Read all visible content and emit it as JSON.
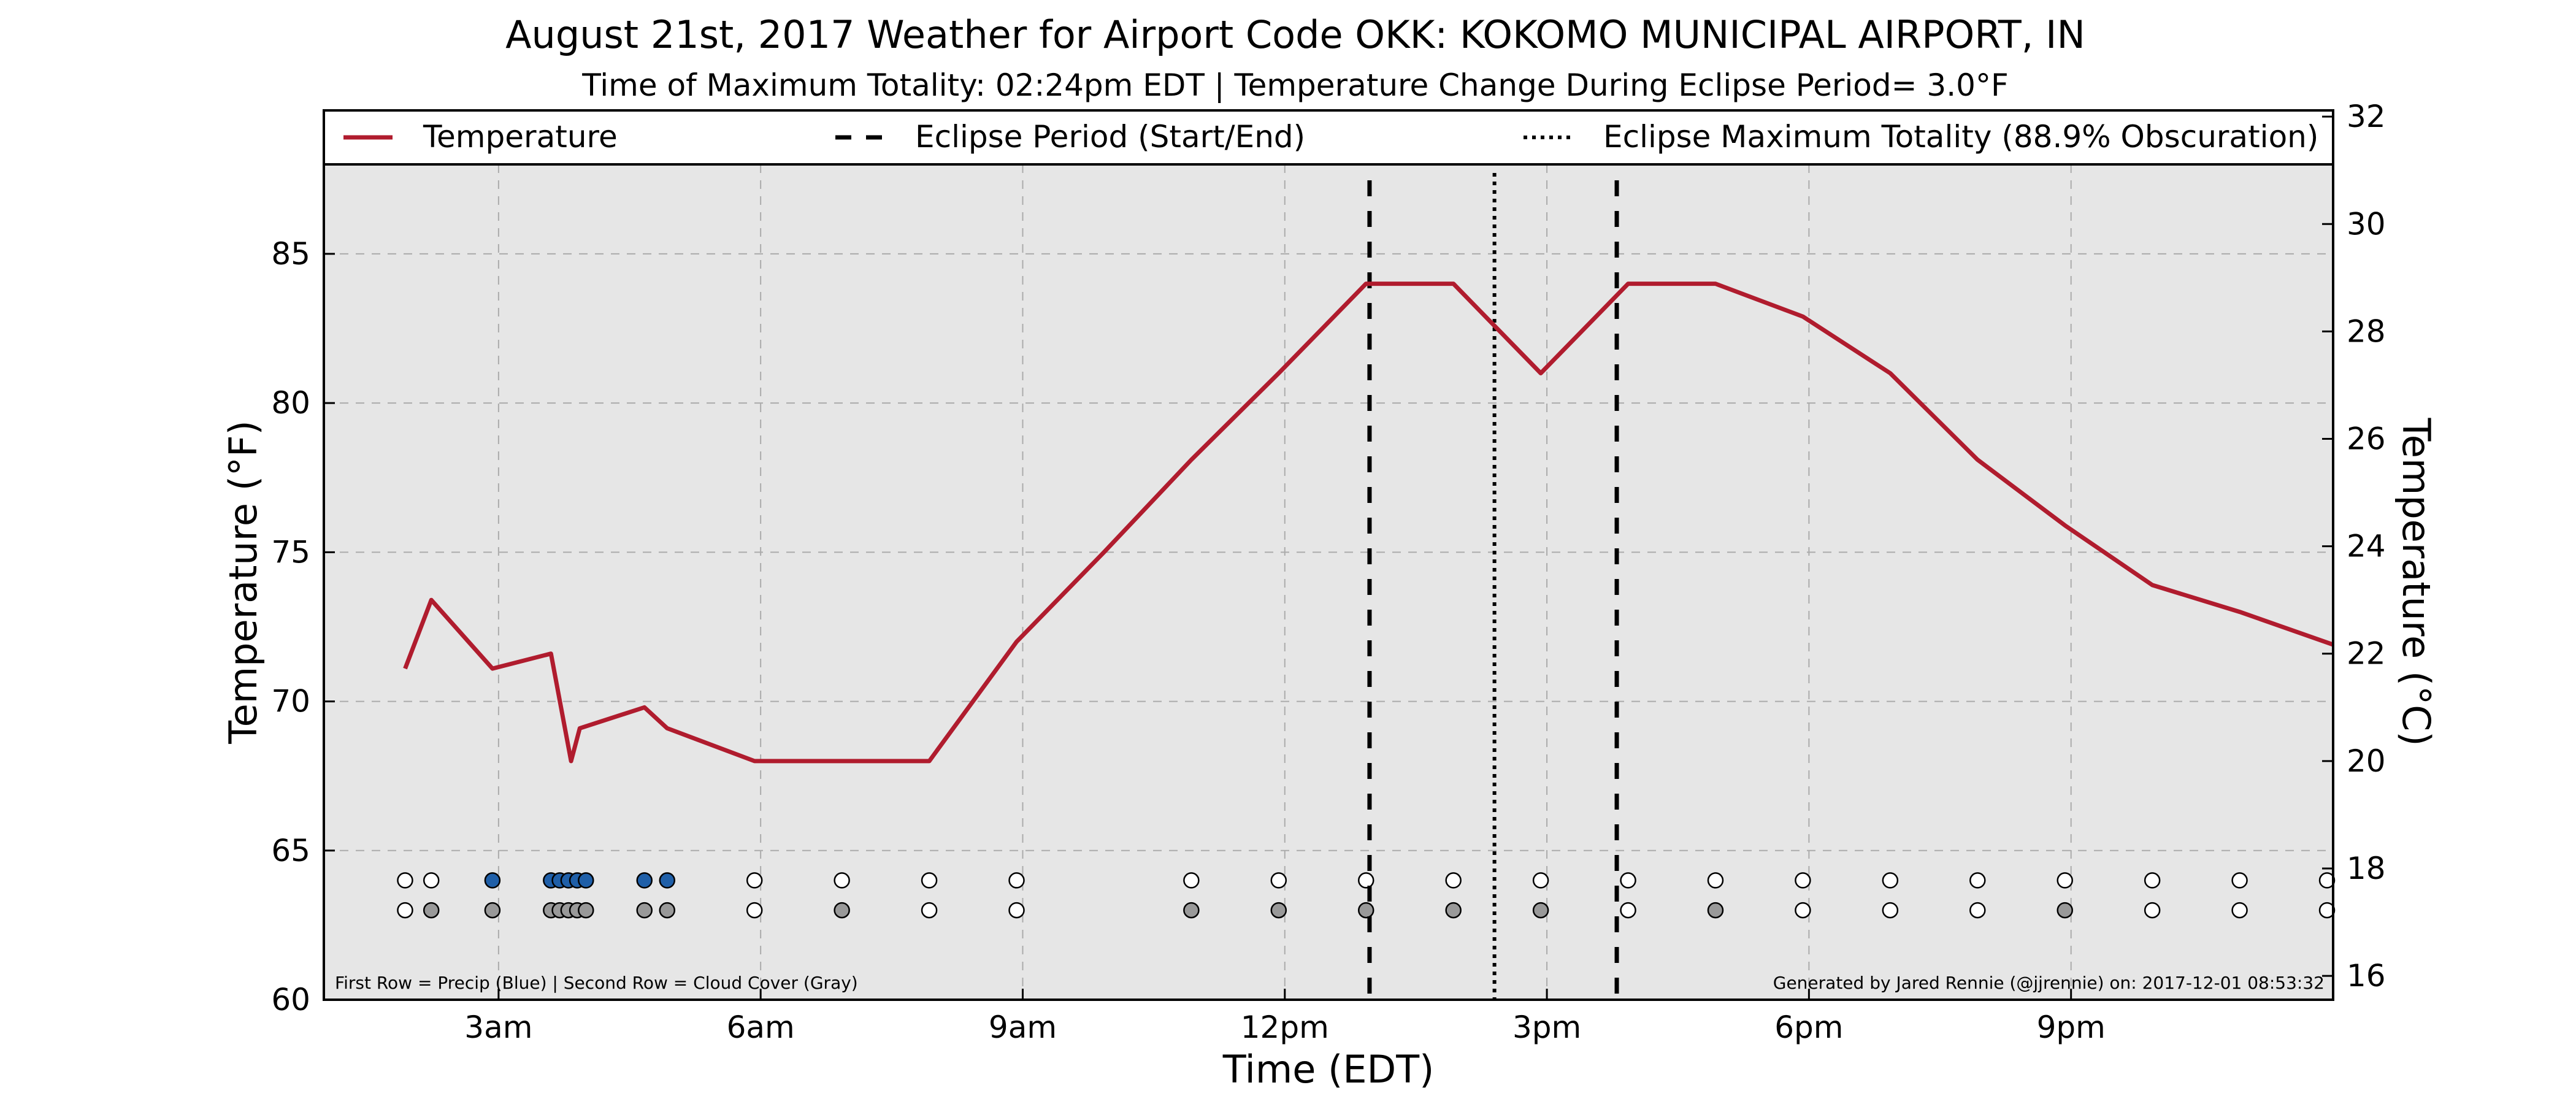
{
  "chart_data": {
    "type": "line",
    "title": "August 21st, 2017 Weather for Airport Code OKK: KOKOMO MUNICIPAL AIRPORT, IN",
    "subtitle": "Time of Maximum Totality: 02:24pm EDT | Temperature Change During Eclipse Period= 3.0°F",
    "xlabel": "Time (EDT)",
    "ylabel": "Temperature (°F)",
    "ylabel_right": "Temperature (°C)",
    "x_unit": "hours since midnight EDT",
    "xlim": [
      1.0,
      24.0
    ],
    "ylim": [
      60,
      88
    ],
    "ylim_right": [
      15.5555556,
      31.1111111
    ],
    "x_ticks": [
      {
        "value": 3,
        "label": "3am"
      },
      {
        "value": 6,
        "label": "6am"
      },
      {
        "value": 9,
        "label": "9am"
      },
      {
        "value": 12,
        "label": "12pm"
      },
      {
        "value": 15,
        "label": "3pm"
      },
      {
        "value": 18,
        "label": "6pm"
      },
      {
        "value": 21,
        "label": "9pm"
      }
    ],
    "y_ticks": [
      60,
      65,
      70,
      75,
      80,
      85
    ],
    "y_ticks_right": [
      16,
      18,
      20,
      22,
      24,
      26,
      28,
      30,
      32
    ],
    "grid": true,
    "legend_placement": "top",
    "legend": [
      {
        "label": "Temperature",
        "style": "solid",
        "color": "#b01c2e"
      },
      {
        "label": "Eclipse Period (Start/End)",
        "style": "dashed",
        "color": "#000000"
      },
      {
        "label": "Eclipse Maximum Totality (88.9% Obscuration)",
        "style": "dotted",
        "color": "#000000"
      }
    ],
    "series": [
      {
        "name": "Temperature",
        "color": "#b01c2e",
        "x": [
          1.93,
          2.23,
          2.93,
          3.6,
          3.83,
          3.93,
          4.67,
          4.93,
          5.93,
          7.93,
          8.93,
          9.93,
          10.93,
          11.93,
          12.93,
          13.93,
          14.93,
          15.93,
          16.93,
          17.93,
          18.93,
          19.93,
          20.93,
          21.93,
          22.93,
          24.0
        ],
        "y": [
          71.1,
          73.4,
          71.1,
          71.6,
          68.0,
          69.1,
          69.8,
          69.1,
          68.0,
          68.0,
          72.0,
          75.0,
          78.1,
          81.0,
          84.0,
          84.0,
          81.0,
          84.0,
          84.0,
          82.9,
          81.0,
          78.1,
          75.9,
          73.9,
          73.0,
          71.9
        ]
      }
    ],
    "eclipse_start": 12.97,
    "eclipse_end": 15.8,
    "eclipse_max": 14.4,
    "precip_row": {
      "y": 64,
      "x": [
        1.93,
        2.23,
        2.93,
        3.6,
        3.7,
        3.8,
        3.9,
        4.0,
        4.67,
        4.93,
        5.93,
        6.93,
        7.93,
        8.93,
        10.93,
        11.93,
        12.93,
        13.93,
        14.93,
        15.93,
        16.93,
        17.93,
        18.93,
        19.93,
        20.93,
        21.93,
        22.93,
        23.93
      ],
      "fill": [
        "#ffffff",
        "#ffffff",
        "#1f5fa8",
        "#1f5fa8",
        "#1f5fa8",
        "#1f5fa8",
        "#1f5fa8",
        "#1f5fa8",
        "#1f5fa8",
        "#1f5fa8",
        "#ffffff",
        "#ffffff",
        "#ffffff",
        "#ffffff",
        "#ffffff",
        "#ffffff",
        "#ffffff",
        "#ffffff",
        "#ffffff",
        "#ffffff",
        "#ffffff",
        "#ffffff",
        "#ffffff",
        "#ffffff",
        "#ffffff",
        "#ffffff",
        "#ffffff",
        "#ffffff"
      ]
    },
    "cloud_row": {
      "y": 63,
      "x": [
        1.93,
        2.23,
        2.93,
        3.6,
        3.7,
        3.8,
        3.9,
        4.0,
        4.67,
        4.93,
        5.93,
        6.93,
        7.93,
        8.93,
        10.93,
        11.93,
        12.93,
        13.93,
        14.93,
        15.93,
        16.93,
        17.93,
        18.93,
        19.93,
        20.93,
        21.93,
        22.93,
        23.93
      ],
      "fill": [
        "#ffffff",
        "#999999",
        "#999999",
        "#999999",
        "#999999",
        "#999999",
        "#999999",
        "#999999",
        "#999999",
        "#999999",
        "#ffffff",
        "#999999",
        "#ffffff",
        "#ffffff",
        "#999999",
        "#999999",
        "#999999",
        "#999999",
        "#999999",
        "#ffffff",
        "#999999",
        "#ffffff",
        "#ffffff",
        "#ffffff",
        "#999999",
        "#ffffff",
        "#ffffff",
        "#ffffff"
      ]
    },
    "footer_left": "First Row = Precip (Blue) | Second Row = Cloud Cover (Gray)",
    "footer_right": "Generated by Jared Rennie (@jjrennie) on: 2017-12-01 08:53:32"
  }
}
